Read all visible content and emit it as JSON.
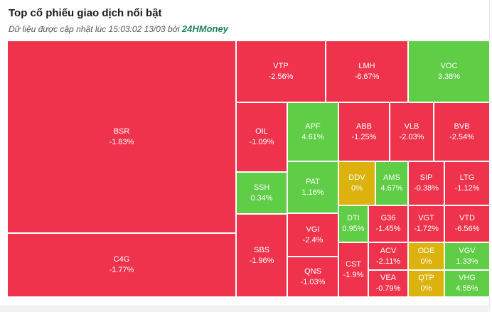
{
  "header": {
    "title": "Top cổ phiếu giao dịch nổi bật",
    "subtitle_prefix": "Dữ liệu được cập nhật lúc 15:03:02 13/03 bởi",
    "brand": "24HMoney"
  },
  "colors": {
    "down": "#f0334d",
    "up": "#5fcd46",
    "flat": "#dcb20c"
  },
  "chart_data": {
    "type": "treemap",
    "title": "Top cổ phiếu giao dịch nổi bật",
    "items": [
      {
        "symbol": "BSR",
        "change": "-1.83%",
        "value": -1.83,
        "status": "down"
      },
      {
        "symbol": "C4G",
        "change": "-1.77%",
        "value": -1.77,
        "status": "down"
      },
      {
        "symbol": "VTP",
        "change": "-2.56%",
        "value": -2.56,
        "status": "down"
      },
      {
        "symbol": "LMH",
        "change": "-6.67%",
        "value": -6.67,
        "status": "down"
      },
      {
        "symbol": "VOC",
        "change": "3.38%",
        "value": 3.38,
        "status": "up"
      },
      {
        "symbol": "OIL",
        "change": "-1.09%",
        "value": -1.09,
        "status": "down"
      },
      {
        "symbol": "APF",
        "change": "4.61%",
        "value": 4.61,
        "status": "up"
      },
      {
        "symbol": "ABB",
        "change": "-1.25%",
        "value": -1.25,
        "status": "down"
      },
      {
        "symbol": "VLB",
        "change": "-2.03%",
        "value": -2.03,
        "status": "down"
      },
      {
        "symbol": "BVB",
        "change": "-2.54%",
        "value": -2.54,
        "status": "down"
      },
      {
        "symbol": "SSH",
        "change": "0.34%",
        "value": 0.34,
        "status": "up"
      },
      {
        "symbol": "PAT",
        "change": "1.16%",
        "value": 1.16,
        "status": "up"
      },
      {
        "symbol": "DDV",
        "change": "0%",
        "value": 0,
        "status": "flat"
      },
      {
        "symbol": "AMS",
        "change": "4.67%",
        "value": 4.67,
        "status": "up"
      },
      {
        "symbol": "SIP",
        "change": "-0.38%",
        "value": -0.38,
        "status": "down"
      },
      {
        "symbol": "LTG",
        "change": "-1.12%",
        "value": -1.12,
        "status": "down"
      },
      {
        "symbol": "DTI",
        "change": "0.95%",
        "value": 0.95,
        "status": "up"
      },
      {
        "symbol": "G36",
        "change": "-1.45%",
        "value": -1.45,
        "status": "down"
      },
      {
        "symbol": "VGT",
        "change": "-1.72%",
        "value": -1.72,
        "status": "down"
      },
      {
        "symbol": "VTD",
        "change": "-6.56%",
        "value": -6.56,
        "status": "down"
      },
      {
        "symbol": "VGI",
        "change": "-2.4%",
        "value": -2.4,
        "status": "down"
      },
      {
        "symbol": "SBS",
        "change": "-1.96%",
        "value": -1.96,
        "status": "down"
      },
      {
        "symbol": "ACV",
        "change": "-2.11%",
        "value": -2.11,
        "status": "down"
      },
      {
        "symbol": "ODE",
        "change": "0%",
        "value": 0,
        "status": "flat"
      },
      {
        "symbol": "VGV",
        "change": "1.33%",
        "value": 1.33,
        "status": "up"
      },
      {
        "symbol": "QNS",
        "change": "-1.03%",
        "value": -1.03,
        "status": "down"
      },
      {
        "symbol": "CST",
        "change": "-1.9%",
        "value": -1.9,
        "status": "down"
      },
      {
        "symbol": "VEA",
        "change": "-0.79%",
        "value": -0.79,
        "status": "down"
      },
      {
        "symbol": "QTP",
        "change": "0%",
        "value": 0,
        "status": "flat"
      },
      {
        "symbol": "VHG",
        "change": "4.55%",
        "value": 4.55,
        "status": "up"
      }
    ]
  }
}
